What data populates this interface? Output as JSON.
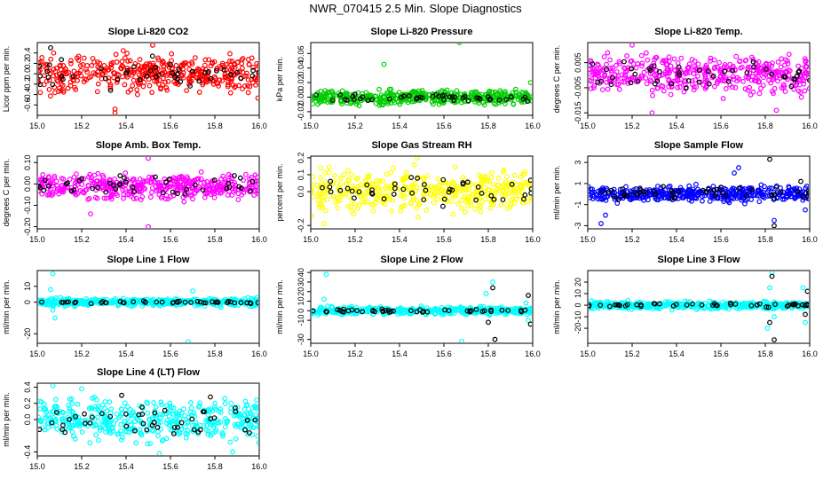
{
  "figure": {
    "title": "NWR_070415  2.5 Min. Slope Diagnostics"
  },
  "chart_data": [
    {
      "type": "scatter",
      "title": "Slope Li-820 CO2",
      "ylabel": "Licor ppm per min.",
      "xlim": [
        15.0,
        16.0
      ],
      "ylim": [
        -0.8,
        0.6
      ],
      "xticks": [
        "15.0",
        "15.2",
        "15.4",
        "15.6",
        "15.8",
        "16.0"
      ],
      "yticks": [
        "-0.6",
        "-0.4",
        "-0.2",
        "0.0",
        "0.2",
        "0.4"
      ],
      "color": "#ff0000",
      "series": [
        {
          "name": "colored",
          "approx_n": 420,
          "typical_range": [
            -0.45,
            0.45
          ],
          "outliers": [
            [
              15.35,
              -0.75
            ],
            [
              15.35,
              -0.68
            ],
            [
              15.52,
              0.55
            ]
          ]
        },
        {
          "name": "black",
          "approx_n": 45,
          "typical_range": [
            -0.35,
            0.35
          ],
          "outliers": [
            [
              15.06,
              0.5
            ],
            [
              15.33,
              -0.32
            ]
          ]
        }
      ]
    },
    {
      "type": "scatter",
      "title": "Slope Li-820 Pressure",
      "ylabel": "kPa per min.",
      "xlim": [
        15.0,
        16.0
      ],
      "ylim": [
        -0.025,
        0.075
      ],
      "xticks": [
        "15.0",
        "15.2",
        "15.4",
        "15.6",
        "15.8",
        "16.0"
      ],
      "yticks": [
        "-0.02",
        "0.00",
        "0.02",
        "0.04",
        "0.06"
      ],
      "color": "#00cc00",
      "series": [
        {
          "name": "colored",
          "approx_n": 420,
          "typical_range": [
            -0.012,
            0.012
          ],
          "outliers": [
            [
              15.33,
              0.045
            ],
            [
              15.67,
              0.075
            ],
            [
              15.99,
              0.02
            ]
          ]
        },
        {
          "name": "black",
          "approx_n": 45,
          "typical_range": [
            -0.008,
            0.006
          ],
          "outliers": []
        }
      ]
    },
    {
      "type": "scatter",
      "title": "Slope Li-820 Temp.",
      "ylabel": "degrees C per min.",
      "xlim": [
        15.0,
        16.0
      ],
      "ylim": [
        -0.016,
        0.013
      ],
      "xticks": [
        "15.0",
        "15.2",
        "15.4",
        "15.6",
        "15.8",
        "16.0"
      ],
      "yticks": [
        "-0.015",
        "-0.005",
        "0.005"
      ],
      "color": "#ff00ff",
      "series": [
        {
          "name": "colored",
          "approx_n": 420,
          "typical_range": [
            -0.009,
            0.009
          ],
          "outliers": [
            [
              15.29,
              -0.015
            ],
            [
              15.85,
              -0.014
            ],
            [
              15.2,
              0.012
            ]
          ]
        },
        {
          "name": "black",
          "approx_n": 45,
          "typical_range": [
            -0.007,
            0.007
          ],
          "outliers": []
        }
      ]
    },
    {
      "type": "scatter",
      "title": "Slope Amb. Box Temp.",
      "ylabel": "degrees C per min.",
      "xlim": [
        15.0,
        16.0
      ],
      "ylim": [
        -0.21,
        0.13
      ],
      "xticks": [
        "15.0",
        "15.2",
        "15.4",
        "15.6",
        "15.8",
        "16.0"
      ],
      "yticks": [
        "-0.20",
        "-0.10",
        "0.00",
        "0.10"
      ],
      "color": "#ff00ff",
      "series": [
        {
          "name": "colored",
          "approx_n": 420,
          "typical_range": [
            -0.08,
            0.06
          ],
          "outliers": [
            [
              15.5,
              0.12
            ],
            [
              15.5,
              -0.2
            ],
            [
              15.24,
              -0.14
            ]
          ]
        },
        {
          "name": "black",
          "approx_n": 45,
          "typical_range": [
            -0.07,
            0.05
          ],
          "outliers": []
        }
      ]
    },
    {
      "type": "scatter",
      "title": "Slope Gas Stream RH",
      "ylabel": "percent per min.",
      "xlim": [
        15.0,
        16.0
      ],
      "ylim": [
        -0.22,
        0.21
      ],
      "xticks": [
        "15.0",
        "15.2",
        "15.4",
        "15.6",
        "15.8",
        "16.0"
      ],
      "yticks": [
        "-0.2",
        "0.0",
        "0.1",
        "0.2"
      ],
      "color": "#ffff00",
      "series": [
        {
          "name": "colored",
          "approx_n": 420,
          "typical_range": [
            -0.15,
            0.15
          ],
          "outliers": [
            [
              15.48,
              0.2
            ],
            [
              15.06,
              -0.19
            ]
          ]
        },
        {
          "name": "black",
          "approx_n": 45,
          "typical_range": [
            -0.12,
            0.12
          ],
          "outliers": []
        }
      ]
    },
    {
      "type": "scatter",
      "title": "Slope Sample Flow",
      "ylabel": "ml/min per min.",
      "xlim": [
        15.0,
        16.0
      ],
      "ylim": [
        -3.3,
        3.6
      ],
      "xticks": [
        "15.0",
        "15.2",
        "15.4",
        "15.6",
        "15.8",
        "16.0"
      ],
      "yticks": [
        "-3",
        "-1",
        "1",
        "3"
      ],
      "color": "#0000ff",
      "series": [
        {
          "name": "colored",
          "approx_n": 420,
          "typical_range": [
            -0.9,
            0.9
          ],
          "outliers": [
            [
              15.08,
              -2.0
            ],
            [
              15.06,
              -2.8
            ],
            [
              15.68,
              2.5
            ],
            [
              15.66,
              2.0
            ],
            [
              15.84,
              -2.5
            ],
            [
              15.98,
              -1.5
            ]
          ]
        },
        {
          "name": "black",
          "approx_n": 45,
          "typical_range": [
            -0.6,
            0.8
          ],
          "outliers": [
            [
              15.82,
              3.3
            ],
            [
              15.84,
              -3.0
            ],
            [
              15.96,
              1.2
            ]
          ]
        }
      ]
    },
    {
      "type": "scatter",
      "title": "Slope Line 1 Flow",
      "ylabel": "ml/min per min.",
      "xlim": [
        15.0,
        16.0
      ],
      "ylim": [
        -26,
        20
      ],
      "xticks": [
        "15.0",
        "15.2",
        "15.4",
        "15.6",
        "15.8",
        "16.0"
      ],
      "yticks": [
        "-20",
        "0",
        "10"
      ],
      "color": "#00ffff",
      "series": [
        {
          "name": "colored",
          "approx_n": 420,
          "typical_range": [
            -3,
            3
          ],
          "outliers": [
            [
              15.07,
              18
            ],
            [
              15.06,
              8
            ],
            [
              15.08,
              -10
            ],
            [
              15.07,
              -5
            ],
            [
              15.68,
              -25
            ],
            [
              15.7,
              7
            ]
          ]
        },
        {
          "name": "black",
          "approx_n": 45,
          "typical_range": [
            -1,
            1
          ],
          "outliers": []
        }
      ]
    },
    {
      "type": "scatter",
      "title": "Slope Line 2 Flow",
      "ylabel": "ml/min per min.",
      "xlim": [
        15.0,
        16.0
      ],
      "ylim": [
        -34,
        42
      ],
      "xticks": [
        "15.0",
        "15.2",
        "15.4",
        "15.6",
        "15.8",
        "16.0"
      ],
      "yticks": [
        "-30",
        "-10",
        "0",
        "10",
        "20",
        "30",
        "40"
      ],
      "color": "#00ffff",
      "series": [
        {
          "name": "colored",
          "approx_n": 420,
          "typical_range": [
            -5,
            5
          ],
          "outliers": [
            [
              15.07,
              38
            ],
            [
              15.06,
              12
            ],
            [
              15.68,
              -32
            ],
            [
              15.79,
              18
            ],
            [
              15.82,
              30
            ],
            [
              15.97,
              8
            ],
            [
              15.98,
              -10
            ]
          ]
        },
        {
          "name": "black",
          "approx_n": 45,
          "typical_range": [
            -2,
            2
          ],
          "outliers": [
            [
              15.82,
              24
            ],
            [
              15.83,
              -30
            ],
            [
              15.8,
              -12
            ],
            [
              15.98,
              16
            ],
            [
              15.99,
              -14
            ]
          ]
        }
      ]
    },
    {
      "type": "scatter",
      "title": "Slope Line 3 Flow",
      "ylabel": "ml/min per min.",
      "xlim": [
        15.0,
        16.0
      ],
      "ylim": [
        -33,
        30
      ],
      "xticks": [
        "15.0",
        "15.2",
        "15.4",
        "15.6",
        "15.8",
        "16.0"
      ],
      "yticks": [
        "-20",
        "-10",
        "0",
        "10",
        "20"
      ],
      "color": "#00ffff",
      "series": [
        {
          "name": "colored",
          "approx_n": 420,
          "typical_range": [
            -4,
            4
          ],
          "outliers": [
            [
              15.83,
              28
            ],
            [
              15.82,
              15
            ],
            [
              15.81,
              -20
            ],
            [
              15.84,
              -10
            ],
            [
              15.97,
              15
            ],
            [
              15.98,
              -15
            ]
          ]
        },
        {
          "name": "black",
          "approx_n": 45,
          "typical_range": [
            -2,
            2
          ],
          "outliers": [
            [
              15.83,
              25
            ],
            [
              15.84,
              -30
            ],
            [
              15.82,
              -15
            ],
            [
              15.99,
              12
            ],
            [
              15.98,
              -8
            ]
          ]
        }
      ]
    },
    {
      "type": "scatter",
      "title": "Slope Line 4 (LT) Flow",
      "ylabel": "ml/min per min.",
      "xlim": [
        15.0,
        16.0
      ],
      "ylim": [
        -0.45,
        0.45
      ],
      "xticks": [
        "15.0",
        "15.2",
        "15.4",
        "15.6",
        "15.8",
        "16.0"
      ],
      "yticks": [
        "-0.4",
        "0.0",
        "0.2",
        "0.4"
      ],
      "color": "#00ffff",
      "series": [
        {
          "name": "colored",
          "approx_n": 420,
          "typical_range": [
            -0.3,
            0.3
          ],
          "outliers": [
            [
              15.07,
              0.42
            ],
            [
              15.55,
              -0.42
            ],
            [
              15.88,
              -0.4
            ],
            [
              15.2,
              0.38
            ]
          ]
        },
        {
          "name": "black",
          "approx_n": 45,
          "typical_range": [
            -0.25,
            0.25
          ],
          "outliers": [
            [
              15.38,
              0.3
            ],
            [
              15.78,
              0.28
            ]
          ]
        }
      ]
    }
  ]
}
